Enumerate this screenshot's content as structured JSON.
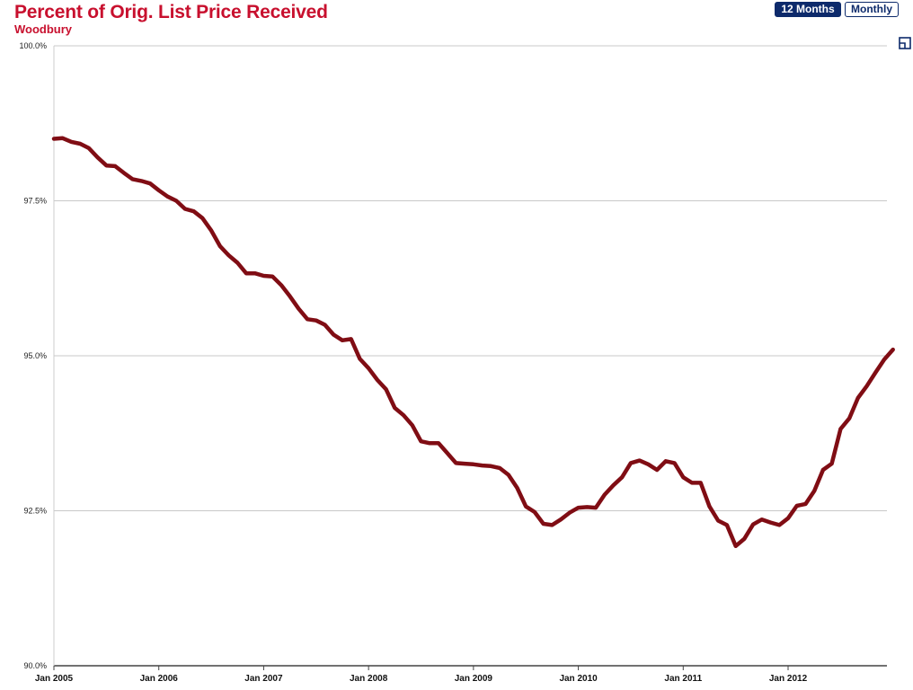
{
  "header": {
    "title": "Percent of Orig. List Price Received",
    "subtitle": "Woodbury",
    "toggle_12_months": "12 Months",
    "toggle_monthly": "Monthly"
  },
  "colors": {
    "line": "#800d14",
    "title": "#c8102e",
    "button": "#0d2a6b",
    "grid": "#c8c8c8"
  },
  "icons": {
    "expand": "expand-icon"
  },
  "chart_data": {
    "type": "line",
    "title": "Percent of Orig. List Price Received",
    "subtitle": "Woodbury",
    "ylim": [
      90,
      100
    ],
    "yticks": [
      100,
      97.5,
      95,
      92.5,
      90
    ],
    "ytick_labels": [
      "100.0%",
      "97.5%",
      "95.0%",
      "92.5%",
      "90.0%"
    ],
    "xlim": [
      0,
      95
    ],
    "xticks": [
      0,
      12,
      24,
      36,
      48,
      60,
      72,
      84
    ],
    "xtick_labels": [
      "Jan 2005",
      "Jan 2006",
      "Jan 2007",
      "Jan 2008",
      "Jan 2009",
      "Jan 2010",
      "Jan 2011",
      "Jan 2012"
    ],
    "grid": true,
    "legend": "none",
    "series": [
      {
        "values": [
          98.5,
          98.51,
          98.45,
          98.42,
          98.35,
          98.2,
          98.07,
          98.06,
          97.95,
          97.85,
          97.82,
          97.78,
          97.67,
          97.57,
          97.5,
          97.37,
          97.33,
          97.22,
          97.02,
          96.77,
          96.62,
          96.5,
          96.33,
          96.33,
          96.29,
          96.28,
          96.14,
          95.96,
          95.76,
          95.59,
          95.57,
          95.5,
          95.34,
          95.25,
          95.27,
          94.95,
          94.8,
          94.61,
          94.46,
          94.16,
          94.04,
          93.88,
          93.62,
          93.59,
          93.59,
          93.43,
          93.27,
          93.26,
          93.25,
          93.23,
          93.22,
          93.19,
          93.08,
          92.87,
          92.57,
          92.48,
          92.29,
          92.27,
          92.36,
          92.47,
          92.55,
          92.56,
          92.55,
          92.76,
          92.91,
          93.04,
          93.27,
          93.31,
          93.25,
          93.16,
          93.3,
          93.27,
          93.04,
          92.95,
          92.95,
          92.57,
          92.34,
          92.27,
          91.93,
          92.05,
          92.28,
          92.36,
          92.31,
          92.27,
          92.38,
          92.58,
          92.61,
          92.82,
          93.16,
          93.26,
          93.82,
          93.99,
          94.32,
          94.51,
          94.73,
          94.94,
          95.1
        ]
      }
    ]
  }
}
